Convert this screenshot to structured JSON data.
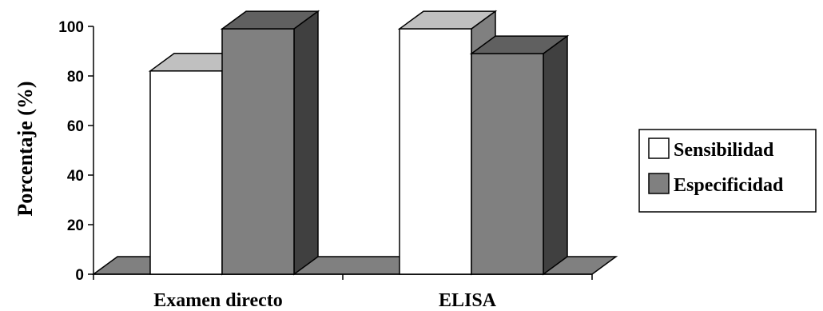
{
  "chart_data": {
    "type": "bar",
    "style": "3d",
    "categories": [
      "Examen directo",
      "ELISA"
    ],
    "series": [
      {
        "name": "Sensibilidad",
        "values": [
          82,
          99
        ],
        "color": "#ffffff",
        "top_color": "#c0c0c0",
        "side_color": "#808080"
      },
      {
        "name": "Especificidad",
        "values": [
          99,
          89
        ],
        "color": "#808080",
        "top_color": "#606060",
        "side_color": "#404040"
      }
    ],
    "ylabel": "Porcentaje (%)",
    "xlabel": "",
    "ylim": [
      0,
      100
    ],
    "yticks": [
      0,
      20,
      40,
      60,
      80,
      100
    ],
    "floor_color": "#808080",
    "grid": false,
    "legend_position": "right"
  }
}
